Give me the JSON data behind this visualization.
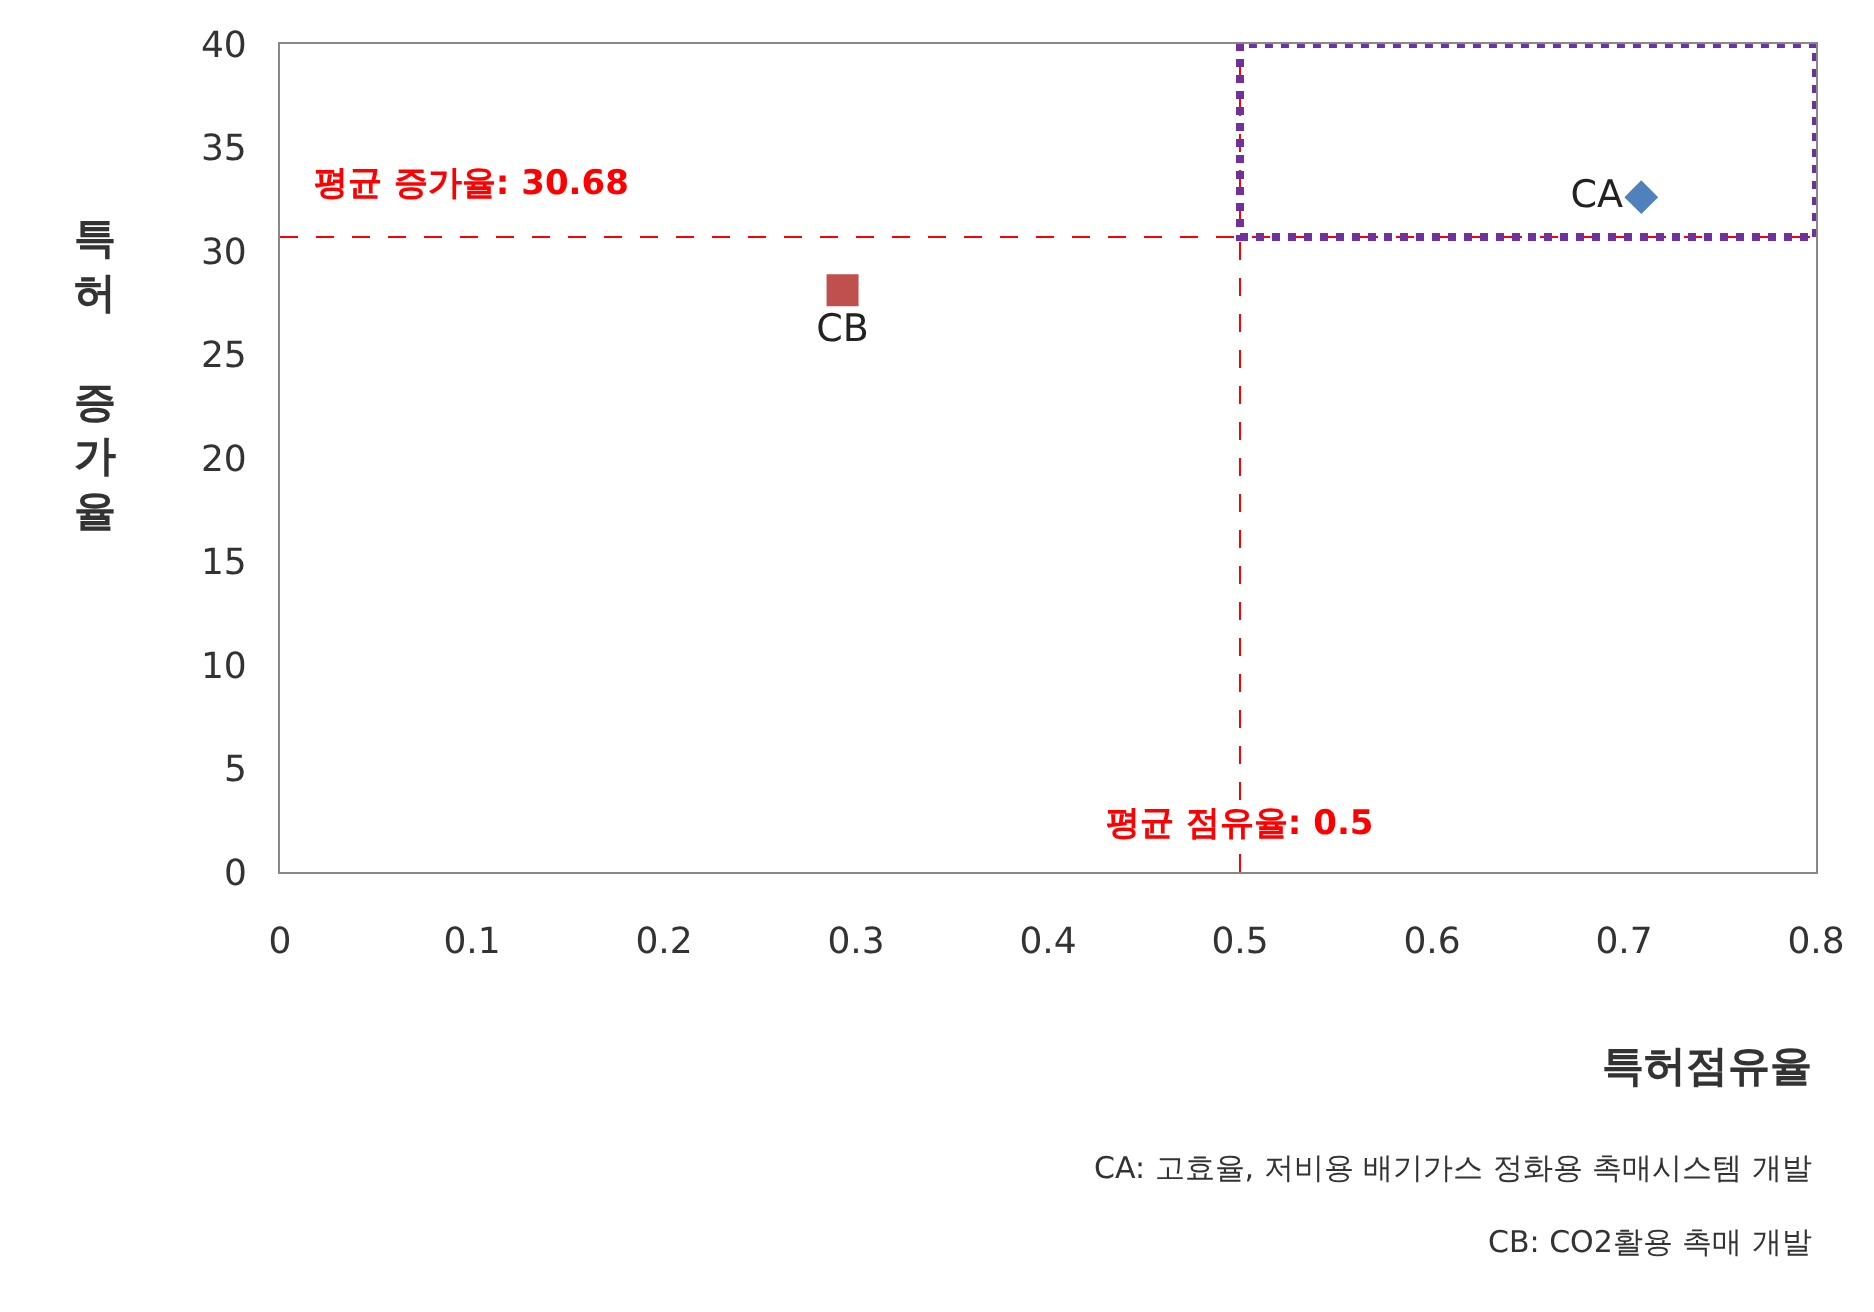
{
  "chart_data": {
    "type": "scatter",
    "xlabel": "특허점유율",
    "ylabel": "특허 증가율",
    "series": [
      {
        "name": "CA",
        "color": "#4f81bd",
        "marker": "diamond",
        "x": [
          0.709
        ],
        "values": [
          32.6
        ]
      },
      {
        "name": "CB",
        "color": "#c0504d",
        "marker": "square",
        "x": [
          0.293
        ],
        "values": [
          28.1
        ]
      }
    ],
    "xlim": [
      0,
      0.8
    ],
    "xticks": [
      0,
      0.1,
      0.2,
      0.3,
      0.4,
      0.5,
      0.6,
      0.7,
      0.8
    ],
    "ylim": [
      0,
      40
    ],
    "yticks": [
      0,
      5,
      10,
      15,
      20,
      25,
      30,
      35,
      40
    ],
    "ref_lines": [
      {
        "axis": "y",
        "value": 30.68,
        "label": "평균 증가율: 30.68",
        "color": "#ff0000",
        "line_style": "dashed"
      },
      {
        "axis": "x",
        "value": 0.5,
        "label": "평균 점유율: 0.5",
        "color": "#ff0000",
        "line_style": "dashed"
      }
    ],
    "annotations": [
      "CA: 고효율, 저비용 배기가스 정화용 촉매시스템 개발",
      "CB: CO2활용 촉매 개발"
    ],
    "legend": false
  }
}
